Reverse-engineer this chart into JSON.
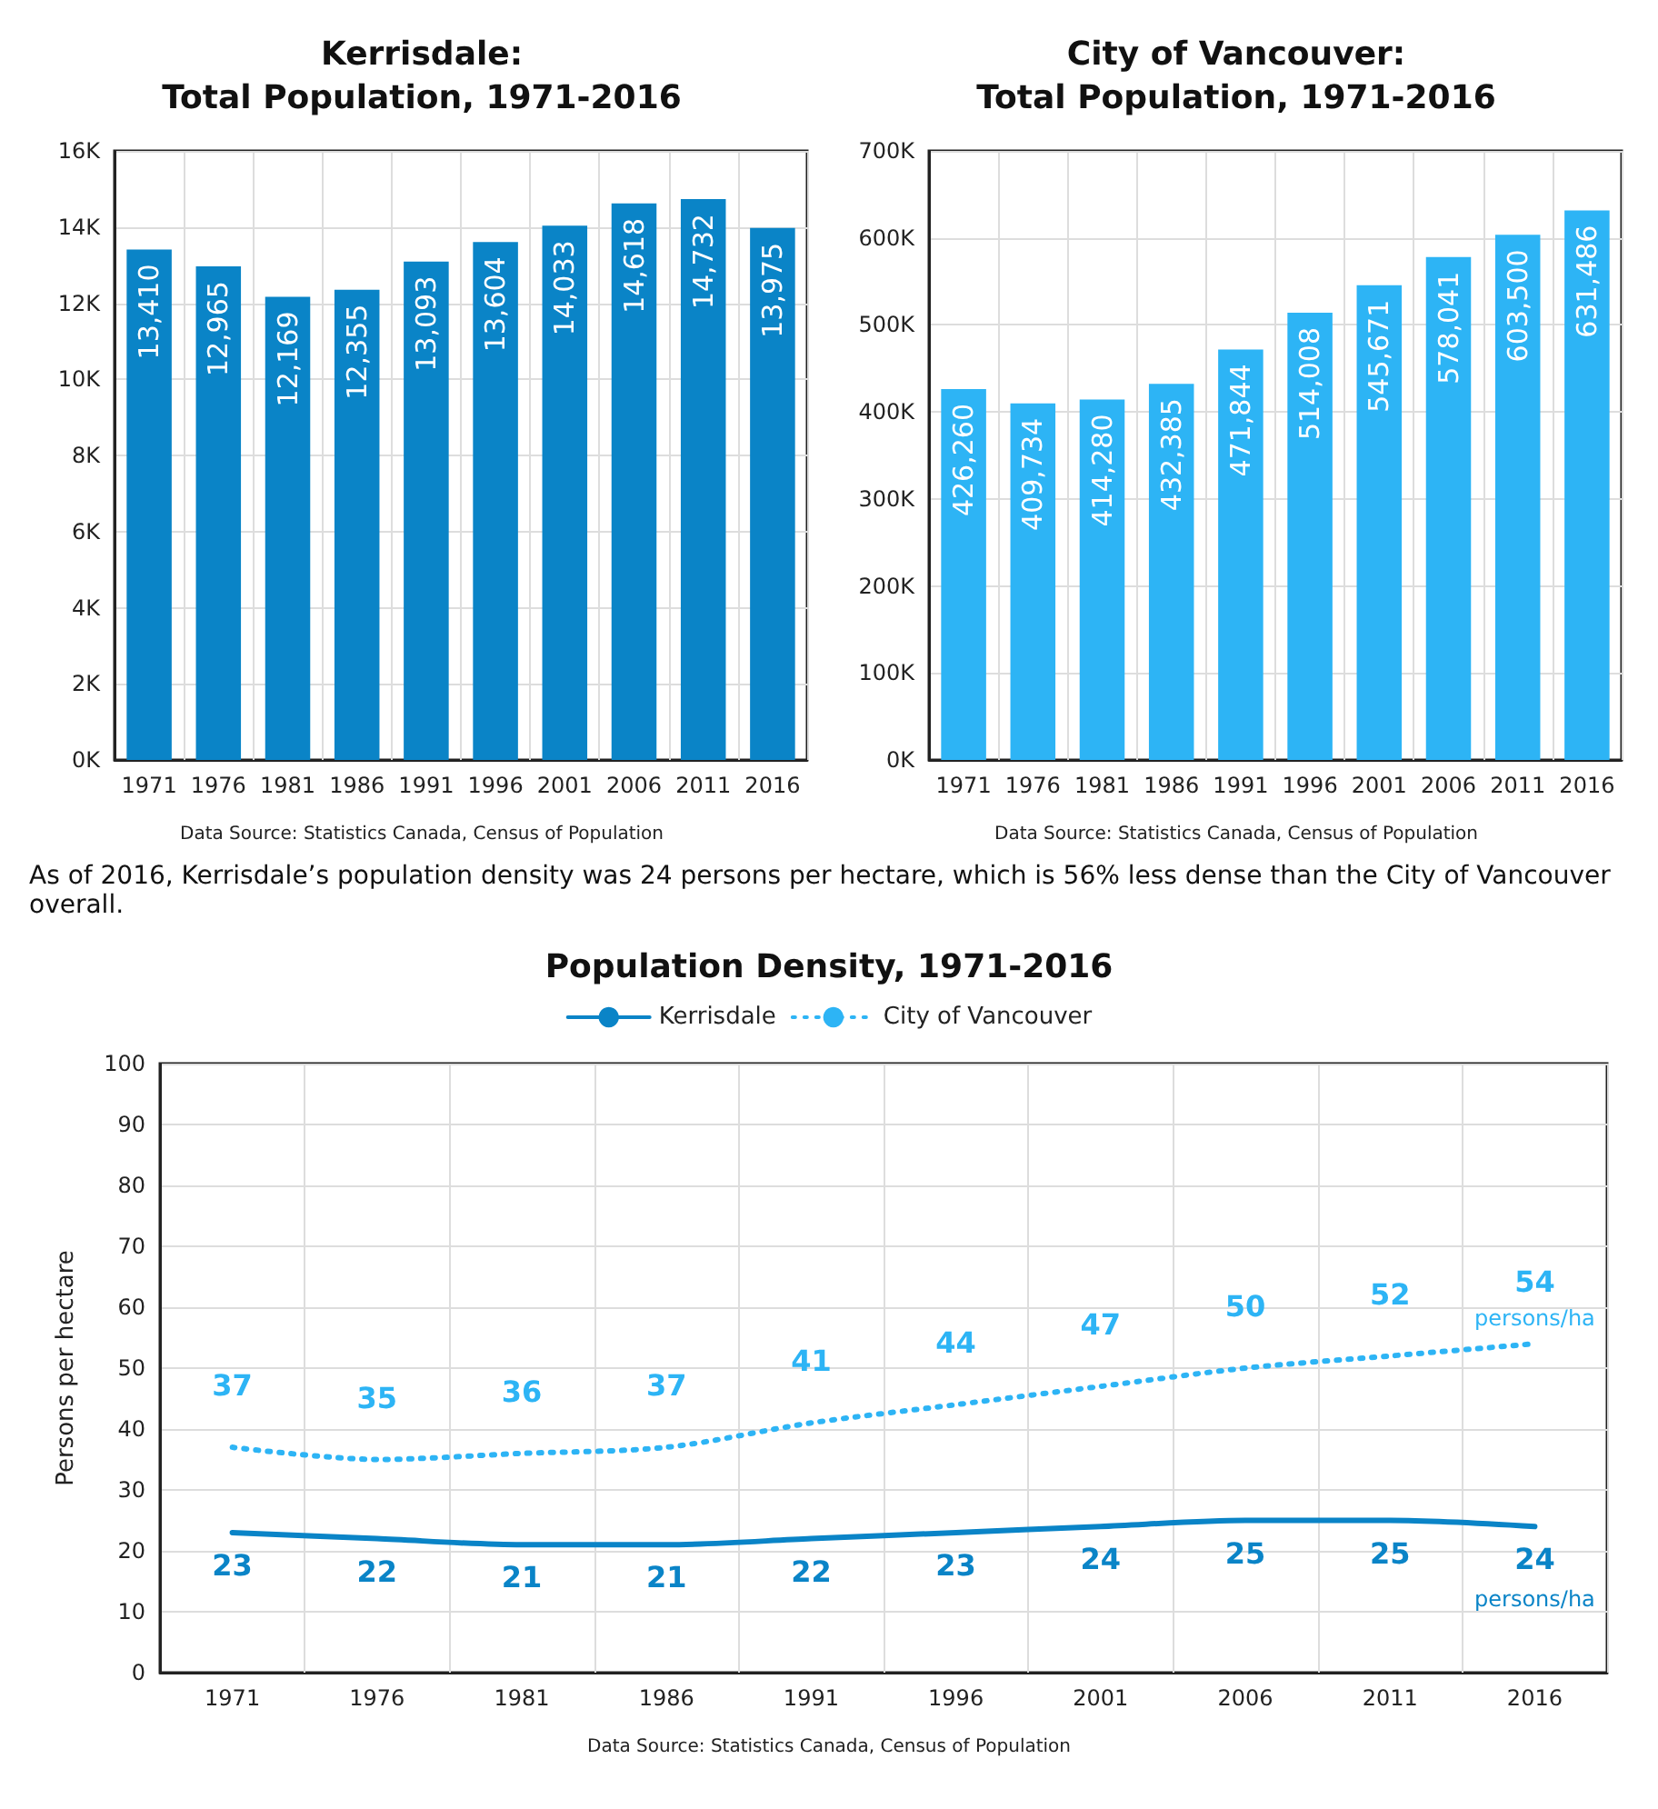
{
  "chart_data": [
    {
      "type": "bar",
      "title": "Kerrisdale:\nTotal Population, 1971-2016",
      "categories": [
        "1971",
        "1976",
        "1981",
        "1986",
        "1991",
        "1996",
        "2001",
        "2006",
        "2011",
        "2016"
      ],
      "values": [
        13410,
        12965,
        12169,
        12355,
        13093,
        13604,
        14033,
        14618,
        14732,
        13975
      ],
      "value_labels": [
        "13,410",
        "12,965",
        "12,169",
        "12,355",
        "13,093",
        "13,604",
        "14,033",
        "14,618",
        "14,732",
        "13,975"
      ],
      "color": "#0a84c7",
      "ylim": [
        0,
        16000
      ],
      "yticks": [
        {
          "value": 0,
          "label": "0K"
        },
        {
          "value": 2000,
          "label": "2K"
        },
        {
          "value": 4000,
          "label": "4K"
        },
        {
          "value": 6000,
          "label": "6K"
        },
        {
          "value": 8000,
          "label": "8K"
        },
        {
          "value": 10000,
          "label": "10K"
        },
        {
          "value": 12000,
          "label": "12K"
        },
        {
          "value": 14000,
          "label": "14K"
        },
        {
          "value": 16000,
          "label": "16K"
        }
      ],
      "grid": true,
      "annotations": [
        "Data Source: Statistics Canada, Census of Population"
      ]
    },
    {
      "type": "bar",
      "title": "City of Vancouver:\nTotal Population, 1971-2016",
      "categories": [
        "1971",
        "1976",
        "1981",
        "1986",
        "1991",
        "1996",
        "2001",
        "2006",
        "2011",
        "2016"
      ],
      "values": [
        426260,
        409734,
        414280,
        432385,
        471844,
        514008,
        545671,
        578041,
        603500,
        631486
      ],
      "value_labels": [
        "426,260",
        "409,734",
        "414,280",
        "432,385",
        "471,844",
        "514,008",
        "545,671",
        "578,041",
        "603,500",
        "631,486"
      ],
      "color": "#2db4f5",
      "ylim": [
        0,
        700000
      ],
      "yticks": [
        {
          "value": 0,
          "label": "0K"
        },
        {
          "value": 100000,
          "label": "100K"
        },
        {
          "value": 200000,
          "label": "200K"
        },
        {
          "value": 300000,
          "label": "300K"
        },
        {
          "value": 400000,
          "label": "400K"
        },
        {
          "value": 500000,
          "label": "500K"
        },
        {
          "value": 600000,
          "label": "600K"
        },
        {
          "value": 700000,
          "label": "700K"
        }
      ],
      "grid": true,
      "annotations": [
        "Data Source: Statistics Canada, Census of Population"
      ]
    },
    {
      "type": "line",
      "title": "Population Density, 1971-2016",
      "ylabel": "Persons per hectare",
      "categories": [
        "1971",
        "1976",
        "1981",
        "1986",
        "1991",
        "1996",
        "2001",
        "2006",
        "2011",
        "2016"
      ],
      "series": [
        {
          "name": "Kerrisdale",
          "color": "#0a84c7",
          "line_style": "solid",
          "values": [
            23,
            22,
            21,
            21,
            22,
            23,
            24,
            25,
            25,
            24
          ]
        },
        {
          "name": "City of Vancouver",
          "color": "#2db4f5",
          "line_style": "dotted",
          "values": [
            37,
            35,
            36,
            37,
            41,
            44,
            47,
            50,
            52,
            54
          ]
        }
      ],
      "ylim": [
        0,
        100
      ],
      "yticks": [
        0,
        10,
        20,
        30,
        40,
        50,
        60,
        70,
        80,
        90,
        100
      ],
      "grid": true,
      "legend": "top",
      "marker": "none",
      "data_labels": true,
      "annotations": [
        "As of 2016, Kerrisdale’s population density was 24 persons per hectare, which is 56% less dense than the City of Vancouver overall.",
        "Data Source: Statistics Canada, Census of Population",
        {
          "text": "persons/ha",
          "x": "2016",
          "y": 54
        },
        {
          "text": "persons/ha",
          "x": "2016",
          "y": 24
        }
      ]
    }
  ]
}
